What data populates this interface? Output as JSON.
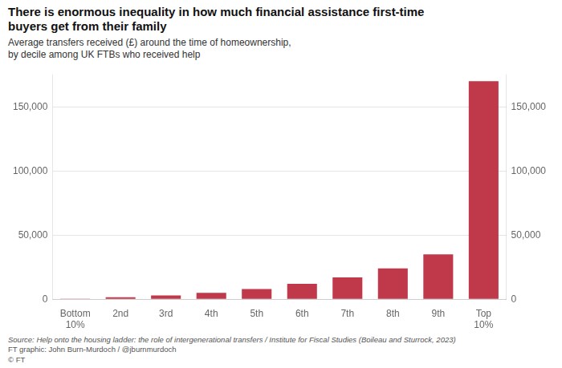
{
  "chart_data": {
    "type": "bar",
    "title": [
      "There is enormous inequality in how much financial assistance first-time",
      "buyers get from their family"
    ],
    "subtitle": [
      "Average transfers received (£) around the time of homeownership,",
      "by decile among UK FTBs who received help"
    ],
    "categories": [
      "Bottom\n10%",
      "2nd",
      "3rd",
      "4th",
      "5th",
      "6th",
      "7th",
      "8th",
      "9th",
      "Top\n10%"
    ],
    "values": [
      500,
      1500,
      3000,
      5000,
      8000,
      12000,
      17000,
      24000,
      35000,
      170000
    ],
    "color": "#c0394b",
    "ylim": [
      0,
      175000
    ],
    "yticks": [
      0,
      {
        "value": 50000,
        "label": "50,000"
      },
      {
        "value": 100000,
        "label": "100,000"
      },
      {
        "value": 150000,
        "label": "150,000"
      }
    ],
    "y2lim": [
      0,
      175000
    ],
    "y2ticks": [
      0,
      {
        "value": 50000,
        "label": "50,000"
      },
      {
        "value": 100000,
        "label": "100,000"
      },
      {
        "value": 150000,
        "label": "150,000"
      }
    ],
    "grid": true,
    "annotations": [
      "Source: Help onto the housing ladder: the role of intergenerational transfers / Institute for Fiscal Studies (Boileau and Sturrock, 2023)",
      "FT graphic: John Burn-Murdoch / @jburnmurdoch",
      "© FT"
    ]
  }
}
